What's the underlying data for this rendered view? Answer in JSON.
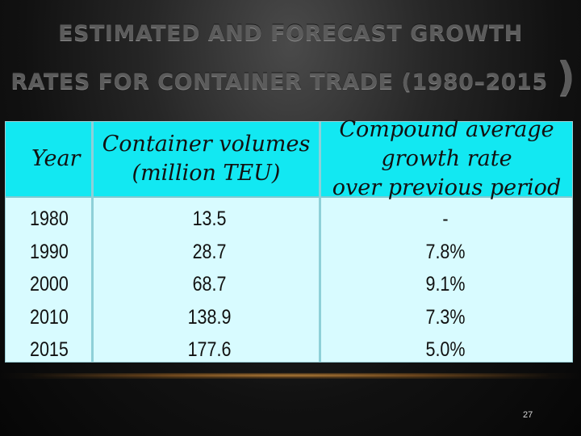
{
  "slide": {
    "title_line1": "ESTIMATED AND FORECAST GROWTH",
    "title_line2": "RATES FOR CONTAINER TRADE (1980–2015",
    "title_paren": ")",
    "page_number": "27"
  },
  "table": {
    "headers": {
      "year": "Year",
      "volumes_line1": "Container volumes",
      "volumes_line2": "(million TEU)",
      "rate_line1": "Compound average growth rate",
      "rate_line2": "over previous period"
    },
    "rows": [
      {
        "year": "1980",
        "volume": "13.5",
        "rate": "-"
      },
      {
        "year": "1990",
        "volume": "28.7",
        "rate": "7.8%"
      },
      {
        "year": "2000",
        "volume": "68.7",
        "rate": "9.1%"
      },
      {
        "year": "2010",
        "volume": "138.9",
        "rate": "7.3%"
      },
      {
        "year": "2015",
        "volume": "177.6",
        "rate": "5.0%"
      }
    ]
  },
  "colors": {
    "header_bg": "#12e8f2",
    "body_bg": "#d8fbff",
    "title_text": "#5b5b5b"
  }
}
